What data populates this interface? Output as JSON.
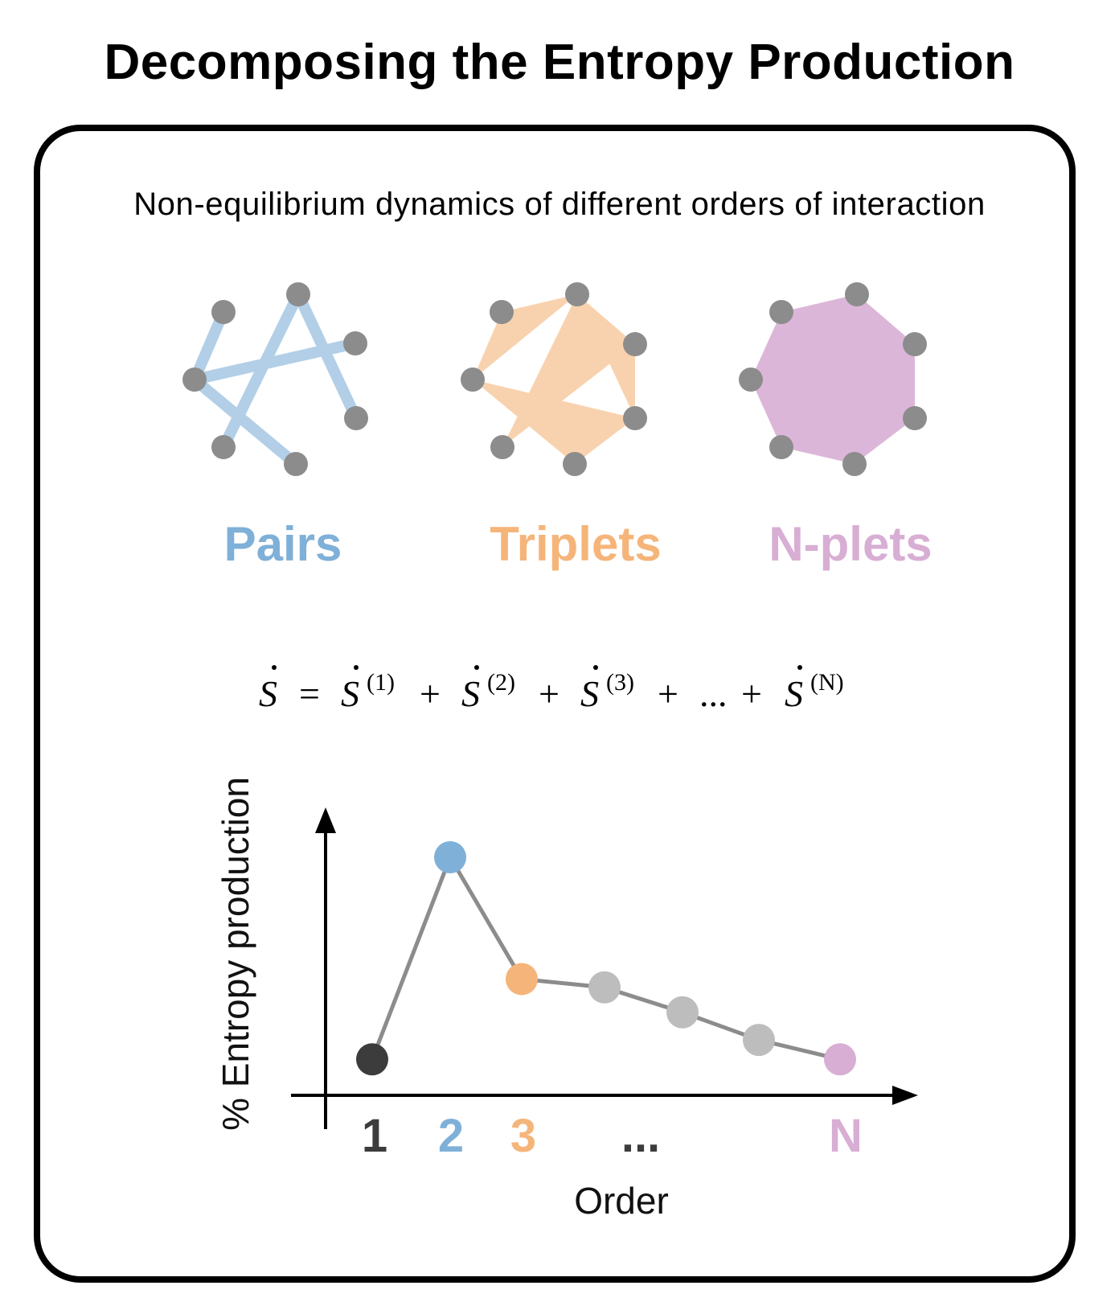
{
  "title": "Decomposing the Entropy Production",
  "subtitle": "Non-equilibrium dynamics of different orders of interaction",
  "groups": [
    {
      "label": "Pairs",
      "color": "#7fb0d8"
    },
    {
      "label": "Triplets",
      "color": "#f5b57a"
    },
    {
      "label": "N-plets",
      "color": "#d8aed4"
    }
  ],
  "equation": {
    "lhs": "S",
    "equals": "=",
    "terms": [
      {
        "base": "S",
        "sup": "(1)"
      },
      {
        "base": "S",
        "sup": "(2)"
      },
      {
        "base": "S",
        "sup": "(3)"
      },
      {
        "base": "...",
        "sup": ""
      },
      {
        "base": "S",
        "sup": "(N)"
      }
    ],
    "plus": "+"
  },
  "colors": {
    "node": "#8c8c8c",
    "order1": "#3c3c3c",
    "order2": "#7fb0d8",
    "order3": "#f5b57a",
    "orderN": "#d8aed4",
    "intermediate": "#bdbdbd",
    "line": "#8c8c8c"
  },
  "chart_data": {
    "type": "line",
    "xlabel": "Order",
    "ylabel": "% Entropy production",
    "categories": [
      "1",
      "2",
      "3",
      "",
      "",
      "",
      "N"
    ],
    "tick_labels": [
      "1",
      "2",
      "3",
      "...",
      "N"
    ],
    "values": [
      0.13,
      0.86,
      0.42,
      0.39,
      0.3,
      0.2,
      0.13
    ],
    "point_colors": [
      "#3c3c3c",
      "#7fb0d8",
      "#f5b57a",
      "#bdbdbd",
      "#bdbdbd",
      "#bdbdbd",
      "#d8aed4"
    ],
    "ylim": [
      0,
      1
    ],
    "grid": false,
    "legend": "none"
  }
}
